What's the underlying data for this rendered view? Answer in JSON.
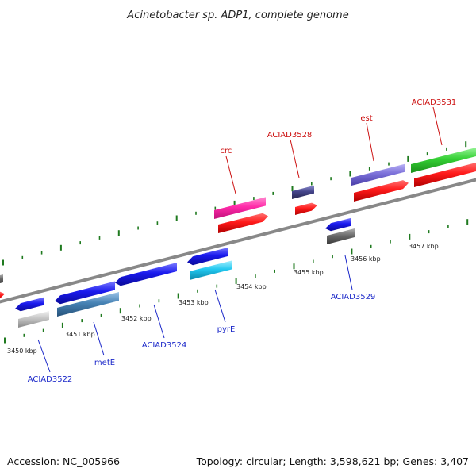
{
  "title": "Acinetobacter sp. ADP1, complete genome",
  "footer": {
    "accession": "Accession: NC_005966",
    "summary": "Topology: circular; Length: 3,598,621 bp; Genes: 3,407"
  },
  "axis": {
    "ticks": [
      "3450 kbp",
      "3451 kbp",
      "3452 kbp",
      "3453 kbp",
      "3454 kbp",
      "3455 kbp",
      "3456 kbp",
      "3457 kbp"
    ]
  },
  "labels": {
    "top": [
      "crc",
      "ACIAD3528",
      "est",
      "ACIAD3531"
    ],
    "bottom": [
      "ACIAD3522",
      "metE",
      "ACIAD3524",
      "pyrE",
      "ACIAD3529"
    ]
  },
  "colors": {
    "top_label": "#cc1111",
    "bottom_label": "#1b28c9",
    "backbone": "#888888",
    "tick": "#1f7a1f"
  }
}
